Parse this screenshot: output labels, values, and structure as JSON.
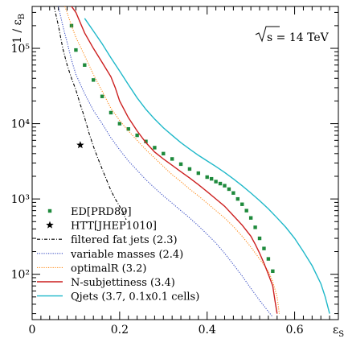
{
  "chart_data": {
    "type": "line",
    "x_scale": "linear",
    "y_scale": "log",
    "xlim": [
      0,
      0.7
    ],
    "ylim": [
      25,
      360000
    ],
    "xlabel": "ε_S",
    "ylabel": "1 / ε_B",
    "x_ticks": [
      0,
      0.2,
      0.4,
      0.6
    ],
    "x_tick_labels": [
      "0",
      "0.2",
      "0.4",
      "0.6"
    ],
    "y_ticks": [
      100,
      1000,
      10000,
      100000
    ],
    "y_tick_labels": [
      "10²",
      "10³",
      "10⁴",
      "10⁵"
    ],
    "annotation": "√s = 14 TeV",
    "legend_placement": "bottom-left",
    "series": [
      {
        "name": "ED[PRD89]",
        "style": "markers",
        "marker": "square",
        "color": "#1e8a3c",
        "points": [
          [
            0.09,
            200000
          ],
          [
            0.1,
            95000
          ],
          [
            0.12,
            60000
          ],
          [
            0.14,
            38000
          ],
          [
            0.16,
            23000
          ],
          [
            0.18,
            14000
          ],
          [
            0.2,
            10000
          ],
          [
            0.22,
            8500
          ],
          [
            0.24,
            7000
          ],
          [
            0.26,
            5800
          ],
          [
            0.28,
            4800
          ],
          [
            0.3,
            4000
          ],
          [
            0.32,
            3400
          ],
          [
            0.34,
            2900
          ],
          [
            0.36,
            2500
          ],
          [
            0.38,
            2200
          ],
          [
            0.4,
            1950
          ],
          [
            0.41,
            1850
          ],
          [
            0.42,
            1700
          ],
          [
            0.43,
            1600
          ],
          [
            0.44,
            1500
          ],
          [
            0.45,
            1350
          ],
          [
            0.46,
            1200
          ],
          [
            0.47,
            1000
          ],
          [
            0.48,
            850
          ],
          [
            0.49,
            700
          ],
          [
            0.5,
            560
          ],
          [
            0.51,
            420
          ],
          [
            0.52,
            300
          ],
          [
            0.53,
            220
          ],
          [
            0.54,
            160
          ],
          [
            0.55,
            110
          ]
        ]
      },
      {
        "name": "HTT[JHEP1010]",
        "style": "markers",
        "marker": "star",
        "color": "#000000",
        "points": [
          [
            0.11,
            5200
          ]
        ]
      },
      {
        "name": "filtered fat jets (2.3)",
        "style": "dashdot",
        "color": "#000000",
        "points": [
          [
            0.05,
            360000
          ],
          [
            0.06,
            200000
          ],
          [
            0.07,
            100000
          ],
          [
            0.08,
            60000
          ],
          [
            0.09,
            40000
          ],
          [
            0.1,
            28000
          ],
          [
            0.11,
            18000
          ],
          [
            0.12,
            12000
          ],
          [
            0.13,
            7500
          ],
          [
            0.14,
            5000
          ],
          [
            0.15,
            3500
          ],
          [
            0.16,
            2500
          ],
          [
            0.17,
            1800
          ],
          [
            0.18,
            1300
          ],
          [
            0.19,
            1000
          ],
          [
            0.2,
            800
          ],
          [
            0.21,
            620
          ],
          [
            0.215,
            530
          ]
        ]
      },
      {
        "name": "variable masses (2.4)",
        "style": "dotted",
        "color": "#3b4fc4",
        "points": [
          [
            0.06,
            360000
          ],
          [
            0.07,
            200000
          ],
          [
            0.08,
            120000
          ],
          [
            0.09,
            70000
          ],
          [
            0.1,
            45000
          ],
          [
            0.12,
            25000
          ],
          [
            0.14,
            15000
          ],
          [
            0.16,
            10000
          ],
          [
            0.18,
            6500
          ],
          [
            0.2,
            4500
          ],
          [
            0.22,
            3200
          ],
          [
            0.24,
            2400
          ],
          [
            0.26,
            1800
          ],
          [
            0.28,
            1400
          ],
          [
            0.3,
            1100
          ],
          [
            0.32,
            880
          ],
          [
            0.34,
            700
          ],
          [
            0.36,
            560
          ],
          [
            0.38,
            440
          ],
          [
            0.4,
            340
          ],
          [
            0.42,
            260
          ],
          [
            0.44,
            190
          ],
          [
            0.46,
            135
          ],
          [
            0.48,
            95
          ],
          [
            0.5,
            65
          ],
          [
            0.52,
            45
          ],
          [
            0.54,
            32
          ],
          [
            0.55,
            27
          ]
        ]
      },
      {
        "name": "optimalR (3.2)",
        "style": "dotted",
        "color": "#ff8c1a",
        "points": [
          [
            0.075,
            360000
          ],
          [
            0.09,
            200000
          ],
          [
            0.1,
            140000
          ],
          [
            0.12,
            80000
          ],
          [
            0.14,
            45000
          ],
          [
            0.16,
            27000
          ],
          [
            0.18,
            16000
          ],
          [
            0.2,
            11000
          ],
          [
            0.22,
            8000
          ],
          [
            0.24,
            6000
          ],
          [
            0.26,
            4500
          ],
          [
            0.28,
            3500
          ],
          [
            0.3,
            2700
          ],
          [
            0.32,
            2100
          ],
          [
            0.34,
            1700
          ],
          [
            0.36,
            1350
          ],
          [
            0.38,
            1100
          ],
          [
            0.4,
            880
          ],
          [
            0.42,
            700
          ],
          [
            0.44,
            560
          ],
          [
            0.46,
            430
          ],
          [
            0.48,
            320
          ],
          [
            0.5,
            230
          ],
          [
            0.52,
            160
          ],
          [
            0.54,
            110
          ],
          [
            0.55,
            80
          ],
          [
            0.56,
            50
          ],
          [
            0.565,
            30
          ]
        ]
      },
      {
        "name": "N-subjettiness (3.4)",
        "style": "solid",
        "color": "#cc1f1f",
        "points": [
          [
            0.09,
            360000
          ],
          [
            0.1,
            300000
          ],
          [
            0.12,
            160000
          ],
          [
            0.14,
            100000
          ],
          [
            0.16,
            65000
          ],
          [
            0.18,
            42000
          ],
          [
            0.19,
            30000
          ],
          [
            0.2,
            20000
          ],
          [
            0.22,
            12000
          ],
          [
            0.24,
            8000
          ],
          [
            0.26,
            5600
          ],
          [
            0.28,
            4200
          ],
          [
            0.3,
            3400
          ],
          [
            0.32,
            2800
          ],
          [
            0.34,
            2300
          ],
          [
            0.36,
            1900
          ],
          [
            0.38,
            1550
          ],
          [
            0.4,
            1250
          ],
          [
            0.42,
            1000
          ],
          [
            0.44,
            800
          ],
          [
            0.46,
            600
          ],
          [
            0.48,
            450
          ],
          [
            0.5,
            320
          ],
          [
            0.51,
            250
          ],
          [
            0.52,
            190
          ],
          [
            0.53,
            140
          ],
          [
            0.54,
            100
          ],
          [
            0.55,
            70
          ],
          [
            0.555,
            45
          ],
          [
            0.56,
            30
          ]
        ]
      },
      {
        "name": "Qjets (3.7, 0.1x0.1 cells)",
        "style": "solid",
        "color": "#1fb8c9",
        "points": [
          [
            0.12,
            250000
          ],
          [
            0.14,
            170000
          ],
          [
            0.16,
            115000
          ],
          [
            0.18,
            75000
          ],
          [
            0.2,
            50000
          ],
          [
            0.22,
            33000
          ],
          [
            0.24,
            22000
          ],
          [
            0.26,
            15500
          ],
          [
            0.28,
            11500
          ],
          [
            0.3,
            8800
          ],
          [
            0.32,
            7000
          ],
          [
            0.34,
            5600
          ],
          [
            0.36,
            4600
          ],
          [
            0.38,
            3800
          ],
          [
            0.4,
            3200
          ],
          [
            0.42,
            2700
          ],
          [
            0.44,
            2250
          ],
          [
            0.46,
            1850
          ],
          [
            0.48,
            1500
          ],
          [
            0.5,
            1200
          ],
          [
            0.52,
            950
          ],
          [
            0.54,
            740
          ],
          [
            0.56,
            560
          ],
          [
            0.58,
            420
          ],
          [
            0.6,
            300
          ],
          [
            0.62,
            200
          ],
          [
            0.64,
            130
          ],
          [
            0.66,
            75
          ],
          [
            0.67,
            50
          ],
          [
            0.68,
            30
          ]
        ]
      }
    ]
  }
}
